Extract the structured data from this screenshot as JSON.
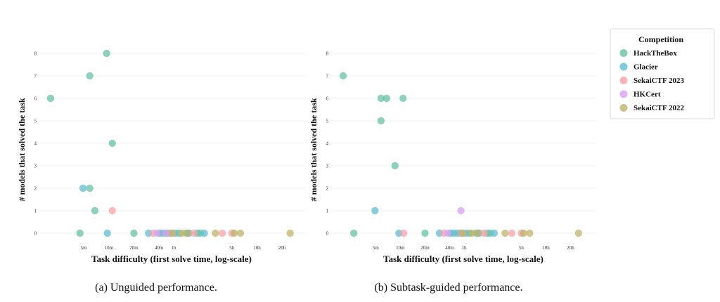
{
  "legend": {
    "title": "Competition",
    "placement": "outside-right-top",
    "entries": [
      {
        "name": "HackTheBox",
        "color": "#66c2a5"
      },
      {
        "name": "Glacier",
        "color": "#5fbcd3"
      },
      {
        "name": "SekaiCTF 2023",
        "color": "#f8a1a8"
      },
      {
        "name": "HKCert",
        "color": "#d9a0f0"
      },
      {
        "name": "SekaiCTF 2022",
        "color": "#bfb46a"
      }
    ]
  },
  "chart_data": [
    {
      "type": "scatter",
      "caption": "(a) Unguided performance.",
      "xlabel": "Task difficulty (first solve time, log-scale)",
      "ylabel": "# models that solved the task",
      "x_scale": "log",
      "x_unit": "minutes",
      "xlim": [
        2,
        1800
      ],
      "ylim": [
        -0.3,
        8.3
      ],
      "grid": true,
      "x_ticks": [
        {
          "value": 5,
          "label": "5m"
        },
        {
          "value": 10,
          "label": "10m"
        },
        {
          "value": 20,
          "label": "20m"
        },
        {
          "value": 40,
          "label": "40m"
        },
        {
          "value": 60,
          "label": "1h"
        },
        {
          "value": 300,
          "label": "5h"
        },
        {
          "value": 600,
          "label": "10h"
        },
        {
          "value": 1200,
          "label": "20h"
        }
      ],
      "y_ticks": [
        0,
        1,
        2,
        3,
        4,
        5,
        6,
        7,
        8
      ],
      "series": [
        {
          "name": "HackTheBox",
          "points": [
            {
              "x": 2,
              "y": 6
            },
            {
              "x": 4.5,
              "y": 0
            },
            {
              "x": 5.9,
              "y": 7
            },
            {
              "x": 9.4,
              "y": 8
            },
            {
              "x": 11,
              "y": 4
            },
            {
              "x": 5.9,
              "y": 2
            },
            {
              "x": 6.8,
              "y": 1
            },
            {
              "x": 20,
              "y": 0
            },
            {
              "x": 45,
              "y": 0
            },
            {
              "x": 55,
              "y": 0
            },
            {
              "x": 70,
              "y": 0
            },
            {
              "x": 85,
              "y": 0
            },
            {
              "x": 115,
              "y": 0
            },
            {
              "x": 125,
              "y": 0
            }
          ]
        },
        {
          "name": "Glacier",
          "points": [
            {
              "x": 4.9,
              "y": 2
            },
            {
              "x": 9.6,
              "y": 0
            },
            {
              "x": 30,
              "y": 0
            },
            {
              "x": 41,
              "y": 0
            },
            {
              "x": 50,
              "y": 0
            },
            {
              "x": 63,
              "y": 0
            },
            {
              "x": 92,
              "y": 0
            },
            {
              "x": 140,
              "y": 0
            }
          ]
        },
        {
          "name": "SekaiCTF 2023",
          "points": [
            {
              "x": 11,
              "y": 1
            },
            {
              "x": 34,
              "y": 0
            },
            {
              "x": 56,
              "y": 0
            },
            {
              "x": 105,
              "y": 0
            },
            {
              "x": 230,
              "y": 0
            },
            {
              "x": 300,
              "y": 0
            }
          ]
        },
        {
          "name": "HKCert",
          "points": [
            {
              "x": 38,
              "y": 0
            },
            {
              "x": 48,
              "y": 0
            }
          ]
        },
        {
          "name": "SekaiCTF 2022",
          "points": [
            {
              "x": 58,
              "y": 0
            },
            {
              "x": 75,
              "y": 0
            },
            {
              "x": 88,
              "y": 0
            },
            {
              "x": 190,
              "y": 0
            },
            {
              "x": 320,
              "y": 0
            },
            {
              "x": 380,
              "y": 0
            },
            {
              "x": 1500,
              "y": 0
            }
          ]
        }
      ]
    },
    {
      "type": "scatter",
      "caption": "(b) Subtask-guided performance.",
      "xlabel": "Task difficulty (first solve time, log-scale)",
      "ylabel": "# models that solved the task",
      "x_scale": "log",
      "x_unit": "minutes",
      "xlim": [
        2,
        1800
      ],
      "ylim": [
        -0.3,
        8.3
      ],
      "grid": true,
      "x_ticks": [
        {
          "value": 5,
          "label": "5m"
        },
        {
          "value": 10,
          "label": "10m"
        },
        {
          "value": 20,
          "label": "20m"
        },
        {
          "value": 40,
          "label": "40m"
        },
        {
          "value": 60,
          "label": "1h"
        },
        {
          "value": 300,
          "label": "5h"
        },
        {
          "value": 600,
          "label": "10h"
        },
        {
          "value": 1200,
          "label": "20h"
        }
      ],
      "y_ticks": [
        0,
        1,
        2,
        3,
        4,
        5,
        6,
        7,
        8
      ],
      "series": [
        {
          "name": "HackTheBox",
          "points": [
            {
              "x": 2,
              "y": 7
            },
            {
              "x": 5.8,
              "y": 6
            },
            {
              "x": 6.8,
              "y": 6
            },
            {
              "x": 10.8,
              "y": 6
            },
            {
              "x": 5.8,
              "y": 5
            },
            {
              "x": 8.6,
              "y": 3
            },
            {
              "x": 2.7,
              "y": 0
            },
            {
              "x": 20,
              "y": 0
            },
            {
              "x": 45,
              "y": 0
            },
            {
              "x": 55,
              "y": 0
            },
            {
              "x": 70,
              "y": 0
            },
            {
              "x": 85,
              "y": 0
            },
            {
              "x": 115,
              "y": 0
            },
            {
              "x": 125,
              "y": 0
            }
          ]
        },
        {
          "name": "Glacier",
          "points": [
            {
              "x": 4.9,
              "y": 1
            },
            {
              "x": 9.6,
              "y": 0
            },
            {
              "x": 30,
              "y": 0
            },
            {
              "x": 41,
              "y": 0
            },
            {
              "x": 50,
              "y": 0
            },
            {
              "x": 63,
              "y": 0
            },
            {
              "x": 92,
              "y": 0
            },
            {
              "x": 140,
              "y": 0
            }
          ]
        },
        {
          "name": "SekaiCTF 2023",
          "points": [
            {
              "x": 11,
              "y": 0
            },
            {
              "x": 34,
              "y": 0
            },
            {
              "x": 56,
              "y": 0
            },
            {
              "x": 105,
              "y": 0
            },
            {
              "x": 230,
              "y": 0
            },
            {
              "x": 300,
              "y": 0
            }
          ]
        },
        {
          "name": "HKCert",
          "points": [
            {
              "x": 38,
              "y": 0
            },
            {
              "x": 55,
              "y": 1
            }
          ]
        },
        {
          "name": "SekaiCTF 2022",
          "points": [
            {
              "x": 58,
              "y": 0
            },
            {
              "x": 75,
              "y": 0
            },
            {
              "x": 88,
              "y": 0
            },
            {
              "x": 190,
              "y": 0
            },
            {
              "x": 320,
              "y": 0
            },
            {
              "x": 380,
              "y": 0
            },
            {
              "x": 1500,
              "y": 0
            }
          ]
        }
      ]
    }
  ]
}
